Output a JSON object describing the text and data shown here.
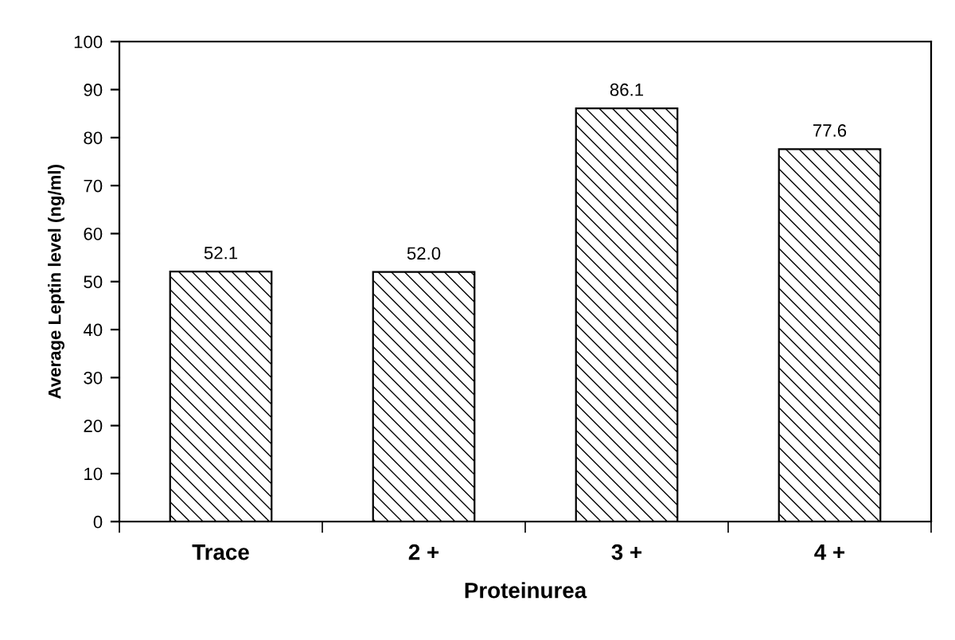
{
  "chart_data": {
    "type": "bar",
    "xlabel": "Proteinurea",
    "ylabel": "Average Leptin level (ng/ml)",
    "categories": [
      "Trace",
      "2 +",
      "3 +",
      "4 +"
    ],
    "values": [
      52.1,
      52.0,
      86.1,
      77.6
    ],
    "value_labels": [
      "52.1",
      "52.0",
      "86.1",
      "77.6"
    ],
    "color": "#000000",
    "ylim": [
      0,
      100
    ],
    "yticks": [
      0,
      10,
      20,
      30,
      40,
      50,
      60,
      70,
      80,
      90,
      100
    ],
    "grid": false
  }
}
